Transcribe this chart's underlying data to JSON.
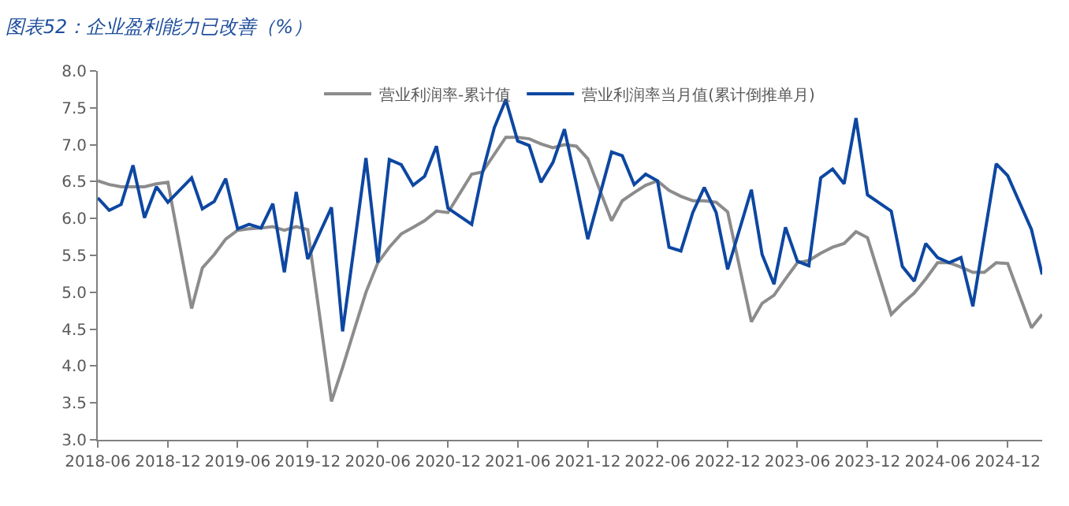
{
  "chart_data": {
    "type": "line",
    "title": "图表52：企业盈利能力已改善（%）",
    "x": [
      "2018-06",
      "2018-07",
      "2018-08",
      "2018-09",
      "2018-10",
      "2018-11",
      "2018-12",
      "2019-02",
      "2019-03",
      "2019-04",
      "2019-05",
      "2019-06",
      "2019-07",
      "2019-08",
      "2019-09",
      "2019-10",
      "2019-11",
      "2019-12",
      "2020-02",
      "2020-03",
      "2020-04",
      "2020-05",
      "2020-06",
      "2020-07",
      "2020-08",
      "2020-09",
      "2020-10",
      "2020-11",
      "2020-12",
      "2021-02",
      "2021-03",
      "2021-04",
      "2021-05",
      "2021-06",
      "2021-07",
      "2021-08",
      "2021-09",
      "2021-10",
      "2021-11",
      "2021-12",
      "2022-02",
      "2022-03",
      "2022-04",
      "2022-05",
      "2022-06",
      "2022-07",
      "2022-08",
      "2022-09",
      "2022-10",
      "2022-11",
      "2022-12",
      "2023-02",
      "2023-03",
      "2023-04",
      "2023-05",
      "2023-06",
      "2023-07",
      "2023-08",
      "2023-09",
      "2023-10",
      "2023-11",
      "2023-12",
      "2024-02",
      "2024-03",
      "2024-04",
      "2024-05",
      "2024-06",
      "2024-07",
      "2024-08",
      "2024-09",
      "2024-10",
      "2024-11",
      "2024-12",
      "2025-02",
      "2025-03"
    ],
    "series": [
      {
        "name": "营业利润率-累计值",
        "color": "#8c8c8c",
        "values": [
          6.51,
          6.46,
          6.43,
          6.43,
          6.43,
          6.47,
          6.49,
          4.78,
          5.33,
          5.51,
          5.72,
          5.84,
          5.86,
          5.87,
          5.89,
          5.84,
          5.89,
          5.85,
          3.52,
          3.98,
          4.5,
          5.0,
          5.4,
          5.61,
          5.79,
          5.88,
          5.97,
          6.1,
          6.08,
          6.6,
          6.63,
          6.87,
          7.1,
          7.1,
          7.08,
          7.01,
          6.96,
          7.0,
          6.98,
          6.81,
          5.97,
          6.24,
          6.35,
          6.45,
          6.51,
          6.38,
          6.3,
          6.24,
          6.24,
          6.22,
          6.09,
          4.6,
          4.85,
          4.96,
          5.18,
          5.4,
          5.43,
          5.53,
          5.61,
          5.66,
          5.82,
          5.74,
          4.7,
          4.85,
          4.99,
          5.18,
          5.4,
          5.4,
          5.34,
          5.27,
          5.27,
          5.4,
          5.39,
          4.52,
          4.7
        ]
      },
      {
        "name": "营业利润率当月值(累计倒推单月)",
        "color": "#0d47a1",
        "values": [
          6.28,
          6.11,
          6.19,
          6.72,
          6.01,
          6.43,
          6.22,
          6.55,
          6.13,
          6.23,
          6.54,
          5.86,
          5.92,
          5.87,
          6.2,
          5.27,
          6.36,
          5.45,
          6.15,
          4.47,
          5.65,
          6.82,
          5.4,
          6.8,
          6.73,
          6.45,
          6.57,
          6.98,
          6.14,
          5.92,
          6.62,
          7.23,
          7.61,
          7.05,
          6.99,
          6.49,
          6.76,
          7.21,
          6.47,
          5.72,
          6.9,
          6.85,
          6.46,
          6.6,
          6.51,
          5.61,
          5.56,
          6.08,
          6.42,
          6.08,
          5.31,
          6.39,
          5.51,
          5.11,
          5.88,
          5.42,
          5.36,
          6.55,
          6.67,
          6.47,
          7.36,
          6.32,
          6.1,
          5.35,
          5.15,
          5.66,
          5.47,
          5.4,
          5.47,
          4.81,
          5.76,
          6.74,
          6.58,
          5.85,
          5.24
        ]
      }
    ],
    "xlim": [
      "2018-06",
      "2025-03"
    ],
    "xticks": [
      {
        "value": "2018-06",
        "label": "2018-06"
      },
      {
        "value": "2018-12",
        "label": "2018-12"
      },
      {
        "value": "2019-06",
        "label": "2019-06"
      },
      {
        "value": "2019-12",
        "label": "2019-12"
      },
      {
        "value": "2020-06",
        "label": "2020-06"
      },
      {
        "value": "2020-12",
        "label": "2020-12"
      },
      {
        "value": "2021-06",
        "label": "2021-06"
      },
      {
        "value": "2021-12",
        "label": "2021-12"
      },
      {
        "value": "2022-06",
        "label": "2022-06"
      },
      {
        "value": "2022-12",
        "label": "2022-12"
      },
      {
        "value": "2023-06",
        "label": "2023-06"
      },
      {
        "value": "2023-12",
        "label": "2023-12"
      },
      {
        "value": "2024-06",
        "label": "2024-06"
      },
      {
        "value": "2024-12",
        "label": "2024-12"
      }
    ],
    "ylim": [
      3,
      8
    ],
    "yticks": [
      {
        "value": 3,
        "label": "3.0"
      },
      {
        "value": 3.5,
        "label": "3.5"
      },
      {
        "value": 4,
        "label": "4.0"
      },
      {
        "value": 4.5,
        "label": "4.5"
      },
      {
        "value": 5,
        "label": "5.0"
      },
      {
        "value": 5.5,
        "label": "5.5"
      },
      {
        "value": 6,
        "label": "6.0"
      },
      {
        "value": 6.5,
        "label": "6.5"
      },
      {
        "value": 7,
        "label": "7.0"
      },
      {
        "value": 7.5,
        "label": "7.5"
      },
      {
        "value": 8,
        "label": "8.0"
      }
    ],
    "legend": "top",
    "marker": "none",
    "line_style": "solid"
  }
}
